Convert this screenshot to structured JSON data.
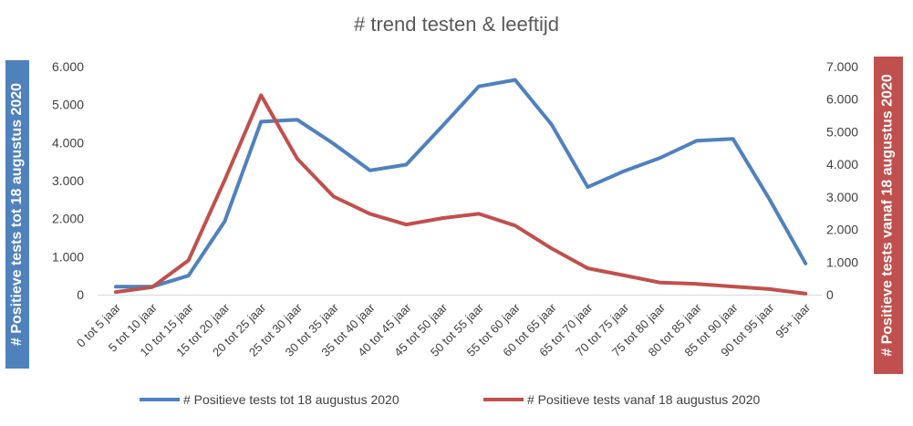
{
  "chart_data": {
    "type": "line",
    "title": "# trend testen & leeftijd",
    "categories": [
      "0 tot 5 jaar",
      "5 tot 10 jaar",
      "10 tot 15 jaar",
      "15 tot 20 jaar",
      "20 tot 25 jaar",
      "25 tot 30 jaar",
      "30 tot 35 jaar",
      "35 tot 40 jaar",
      "40 tot 45 jaar",
      "45 tot 50 jaar",
      "50 tot 55 jaar",
      "55 tot 60 jaar",
      "60 tot 65 jaar",
      "65 tot 70 jaar",
      "70 tot 75 jaar",
      "75 tot 80 jaar",
      "80 tot 85 jaar",
      "85 tot 90 jaar",
      "90 tot 95 jaar",
      "95+ jaar"
    ],
    "series": [
      {
        "name": "# Positieve tests tot 18 augustus 2020",
        "axis": "left",
        "color": "#4f81bd",
        "values": [
          210,
          210,
          500,
          1930,
          4550,
          4600,
          3970,
          3270,
          3420,
          4440,
          5480,
          5650,
          4480,
          2830,
          3250,
          3600,
          4050,
          4100,
          2520,
          820
        ]
      },
      {
        "name": "# Positieve tests vanaf 18 augustus 2020",
        "axis": "right",
        "color": "#c0504d",
        "values": [
          80,
          230,
          1050,
          3520,
          6120,
          4170,
          3010,
          2480,
          2150,
          2350,
          2480,
          2120,
          1420,
          810,
          590,
          370,
          330,
          250,
          170,
          30
        ]
      }
    ],
    "yaxis_left": {
      "label": "# Positieve tests tot 18 augustus 2020",
      "min": 0,
      "max": 6000,
      "ticks": [
        "0",
        "1.000",
        "2.000",
        "3.000",
        "4.000",
        "5.000",
        "6.000"
      ],
      "color": "#4f81bd"
    },
    "yaxis_right": {
      "label": "# Positieve tests vanaf 18 augustus 2020",
      "min": 0,
      "max": 7000,
      "ticks": [
        "0",
        "1.000",
        "2.000",
        "3.000",
        "4.000",
        "5.000",
        "6.000",
        "7.000"
      ],
      "color": "#c0504d"
    },
    "grid": false,
    "legend_position": "bottom"
  }
}
